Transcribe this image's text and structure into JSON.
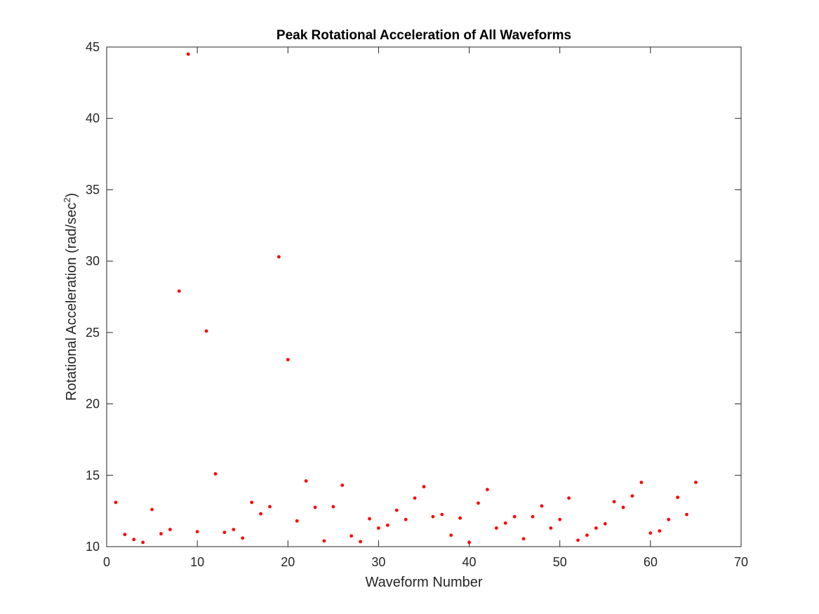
{
  "chart_data": {
    "type": "scatter",
    "title": "Peak Rotational Acceleration of All Waveforms",
    "xlabel": "Waveform Number",
    "ylabel": "Rotational Acceleration (rad/sec",
    "ylabel_superscript": "2",
    "ylabel_suffix": ")",
    "xlim": [
      0,
      70
    ],
    "ylim": [
      10,
      45
    ],
    "xticks": [
      0,
      10,
      20,
      30,
      40,
      50,
      60,
      70
    ],
    "yticks": [
      10,
      15,
      20,
      25,
      30,
      35,
      40,
      45
    ],
    "grid": false,
    "marker_color": "#ff0000",
    "series": [
      {
        "x": [
          1,
          2,
          3,
          4,
          5,
          6,
          7,
          8,
          9,
          10,
          11,
          12,
          13,
          14,
          15,
          16,
          17,
          18,
          19,
          20,
          21,
          22,
          23,
          24,
          25,
          26,
          27,
          28,
          29,
          30,
          31,
          32,
          33,
          34,
          35,
          36,
          37,
          38,
          39,
          40,
          41,
          42,
          43,
          44,
          45,
          46,
          47,
          48,
          49,
          50,
          51,
          52,
          53,
          54,
          55,
          56,
          57,
          58,
          59,
          60,
          61,
          62,
          63,
          64,
          65
        ],
        "y": [
          13.1,
          10.85,
          10.5,
          10.3,
          12.6,
          10.9,
          11.2,
          27.9,
          44.5,
          11.05,
          25.1,
          15.1,
          11.0,
          11.2,
          10.6,
          13.1,
          12.3,
          12.8,
          30.3,
          23.1,
          11.8,
          14.6,
          12.75,
          10.4,
          12.8,
          14.3,
          10.75,
          10.35,
          11.95,
          11.3,
          11.5,
          12.55,
          11.9,
          13.4,
          14.2,
          12.1,
          12.25,
          10.8,
          12.0,
          10.3,
          13.05,
          14.0,
          11.3,
          11.65,
          12.1,
          10.55,
          12.1,
          12.85,
          11.3,
          11.9,
          13.4,
          10.45,
          10.8,
          11.3,
          11.6,
          13.15,
          12.75,
          13.55,
          14.5,
          10.95,
          11.1,
          11.9,
          13.45,
          12.25,
          14.5
        ]
      }
    ]
  }
}
